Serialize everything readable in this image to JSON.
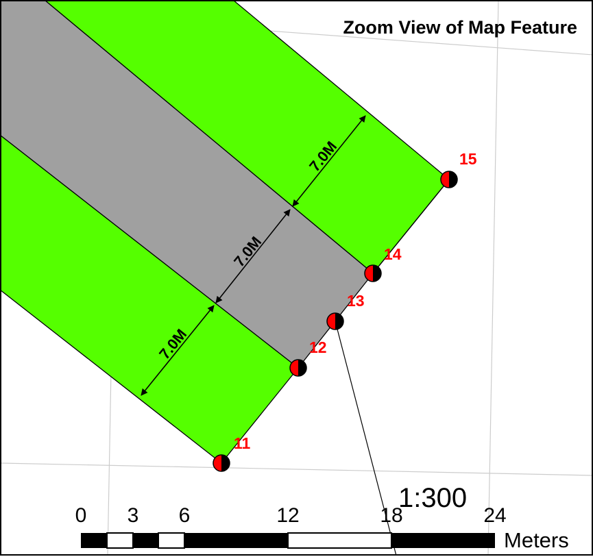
{
  "title": "Zoom View of Map Feature",
  "colors": {
    "vegetation": "#55ff00",
    "roadway": "#a0a0a0",
    "label": "#ff0000",
    "grid": "#cccccc",
    "outline": "#000000"
  },
  "dimensions": [
    {
      "label": "7.0M"
    },
    {
      "label": "7.0M"
    },
    {
      "label": "7.0M"
    }
  ],
  "survey_points": [
    {
      "id": "11",
      "label": "11"
    },
    {
      "id": "12",
      "label": "12"
    },
    {
      "id": "13",
      "label": "13"
    },
    {
      "id": "14",
      "label": "14"
    },
    {
      "id": "15",
      "label": "15"
    }
  ],
  "scale": {
    "ratio": "1:300",
    "ticks": [
      "0",
      "3",
      "6",
      "12",
      "18",
      "24"
    ],
    "units": "Meters"
  }
}
